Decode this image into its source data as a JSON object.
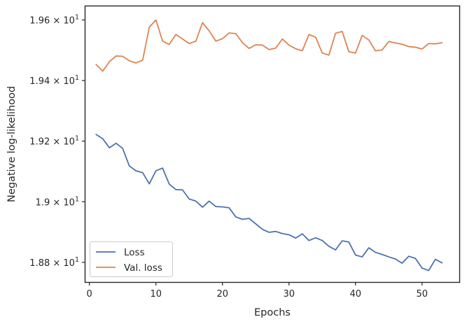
{
  "chart_data": {
    "type": "line",
    "xlabel": "Epochs",
    "ylabel": "Negative log-likelihood",
    "xlim": [
      -0.6,
      55.6
    ],
    "ylim": [
      18.735,
      19.645
    ],
    "x_ticks": [
      0,
      10,
      20,
      30,
      40,
      50
    ],
    "x_tick_labels": [
      "0",
      "10",
      "20",
      "30",
      "40",
      "50"
    ],
    "y_ticks": [
      18.8,
      19.0,
      19.2,
      19.4,
      19.6
    ],
    "y_tick_labels": [
      {
        "mantissa": "1.88",
        "times": "×",
        "base": "10",
        "exp": "1"
      },
      {
        "mantissa": "1.9",
        "times": "×",
        "base": "10",
        "exp": "1"
      },
      {
        "mantissa": "1.92",
        "times": "×",
        "base": "10",
        "exp": "1"
      },
      {
        "mantissa": "1.94",
        "times": "×",
        "base": "10",
        "exp": "1"
      },
      {
        "mantissa": "1.96",
        "times": "×",
        "base": "10",
        "exp": "1"
      }
    ],
    "grid": false,
    "legend_position": "lower-left",
    "x": [
      1,
      2,
      3,
      4,
      5,
      6,
      7,
      8,
      9,
      10,
      11,
      12,
      13,
      14,
      15,
      16,
      17,
      18,
      19,
      20,
      21,
      22,
      23,
      24,
      25,
      26,
      27,
      28,
      29,
      30,
      31,
      32,
      33,
      34,
      35,
      36,
      37,
      38,
      39,
      40,
      41,
      42,
      43,
      44,
      45,
      46,
      47,
      48,
      49,
      50,
      51,
      52,
      53
    ],
    "series": [
      {
        "name": "Loss",
        "color": "#4c72b0",
        "values": [
          19.222,
          19.208,
          19.178,
          19.193,
          19.176,
          19.118,
          19.102,
          19.096,
          19.059,
          19.102,
          19.111,
          19.058,
          19.04,
          19.039,
          19.009,
          19.002,
          18.982,
          19.002,
          18.984,
          18.983,
          18.98,
          18.95,
          18.942,
          18.945,
          18.927,
          18.909,
          18.899,
          18.902,
          18.895,
          18.891,
          18.88,
          18.894,
          18.872,
          18.881,
          18.872,
          18.853,
          18.841,
          18.871,
          18.867,
          18.824,
          18.818,
          18.848,
          18.833,
          18.826,
          18.818,
          18.811,
          18.797,
          18.82,
          18.813,
          18.781,
          18.773,
          18.81,
          18.798
        ]
      },
      {
        "name": "Val. loss",
        "color": "#dd8452",
        "values": [
          19.453,
          19.431,
          19.462,
          19.481,
          19.48,
          19.465,
          19.458,
          19.467,
          19.576,
          19.6,
          19.53,
          19.519,
          19.552,
          19.537,
          19.522,
          19.53,
          19.591,
          19.564,
          19.53,
          19.538,
          19.557,
          19.555,
          19.525,
          19.506,
          19.518,
          19.517,
          19.502,
          19.507,
          19.537,
          19.517,
          19.505,
          19.498,
          19.552,
          19.543,
          19.491,
          19.484,
          19.556,
          19.562,
          19.495,
          19.491,
          19.549,
          19.534,
          19.498,
          19.501,
          19.529,
          19.524,
          19.52,
          19.512,
          19.51,
          19.504,
          19.522,
          19.521,
          19.525
        ]
      }
    ]
  }
}
